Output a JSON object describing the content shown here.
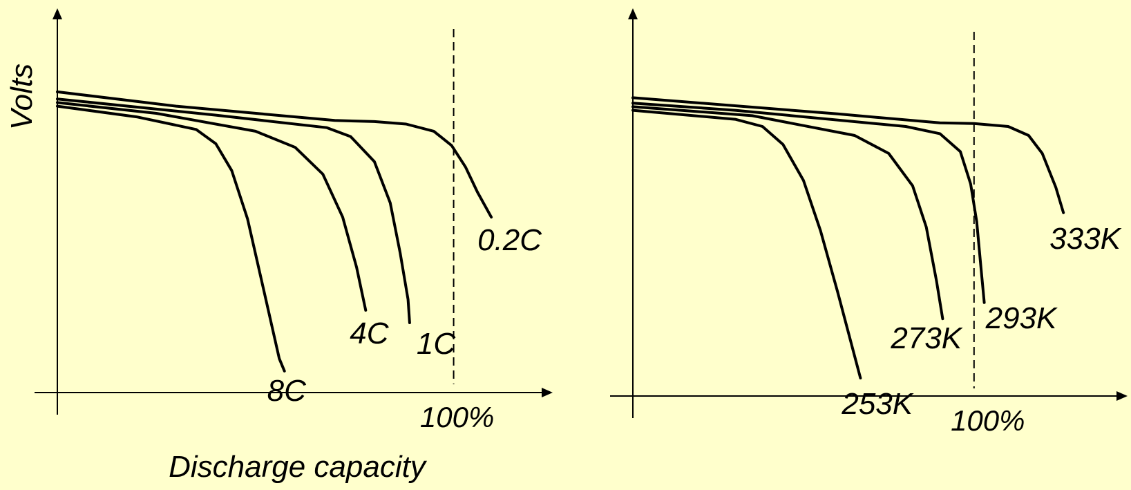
{
  "background_color": "#FFFFCC",
  "line_color": "#000000",
  "chart_data": [
    {
      "type": "line",
      "xlabel": "Discharge capacity",
      "ylabel": "Volts",
      "x_unit": "%",
      "xlim": [
        0,
        125
      ],
      "ylim": [
        0,
        100
      ],
      "reference_line": {
        "x": 100,
        "label": "100%",
        "style": "dashed"
      },
      "series": [
        {
          "name": "0.2C",
          "x": [
            0,
            30,
            70,
            80,
            88,
            95,
            99.5,
            103,
            106,
            109.5
          ],
          "y": [
            84,
            80,
            76,
            75.7,
            75,
            73,
            69,
            63,
            56,
            49
          ]
        },
        {
          "name": "1C",
          "x": [
            0,
            40,
            68,
            74,
            80,
            84,
            86.5,
            88.5,
            88.9
          ],
          "y": [
            82,
            77.5,
            74,
            71.5,
            64.5,
            53,
            39,
            26,
            19.5
          ]
        },
        {
          "name": "4C",
          "x": [
            0,
            25,
            50,
            60,
            67,
            72,
            75.5,
            77.8
          ],
          "y": [
            81,
            78,
            73,
            68.5,
            61,
            49,
            35,
            23
          ]
        },
        {
          "name": "8C",
          "x": [
            0,
            20,
            35,
            40,
            44,
            48,
            52,
            56,
            57.3
          ],
          "y": [
            80,
            77,
            73.5,
            69.5,
            62,
            48.5,
            29,
            9.5,
            6
          ]
        }
      ]
    },
    {
      "type": "line",
      "xlabel": "",
      "ylabel": "",
      "x_unit": "%",
      "xlim": [
        0,
        145
      ],
      "ylim": [
        0,
        100
      ],
      "reference_line": {
        "x": 100,
        "label": "100%",
        "style": "dashed"
      },
      "series": [
        {
          "name": "333K",
          "x": [
            0,
            60,
            90,
            100,
            110,
            116,
            120,
            124,
            126.2
          ],
          "y": [
            83,
            78.5,
            76,
            75.8,
            75,
            72.5,
            67.5,
            58,
            51
          ]
        },
        {
          "name": "293K",
          "x": [
            0,
            30,
            80,
            90,
            96,
            99,
            100.8,
            102,
            103
          ],
          "y": [
            81.5,
            79.5,
            75,
            73,
            68,
            59,
            48.5,
            36,
            26
          ]
        },
        {
          "name": "273K",
          "x": [
            0,
            35,
            65,
            75,
            82,
            86,
            89,
            90.8
          ],
          "y": [
            80.5,
            78,
            72.5,
            67.5,
            58.5,
            47,
            32,
            21.5
          ]
        },
        {
          "name": "253K",
          "x": [
            0,
            30,
            38,
            44,
            50,
            55,
            60,
            66.7
          ],
          "y": [
            79.5,
            77,
            75,
            70,
            60,
            46,
            29,
            5
          ]
        }
      ]
    }
  ]
}
